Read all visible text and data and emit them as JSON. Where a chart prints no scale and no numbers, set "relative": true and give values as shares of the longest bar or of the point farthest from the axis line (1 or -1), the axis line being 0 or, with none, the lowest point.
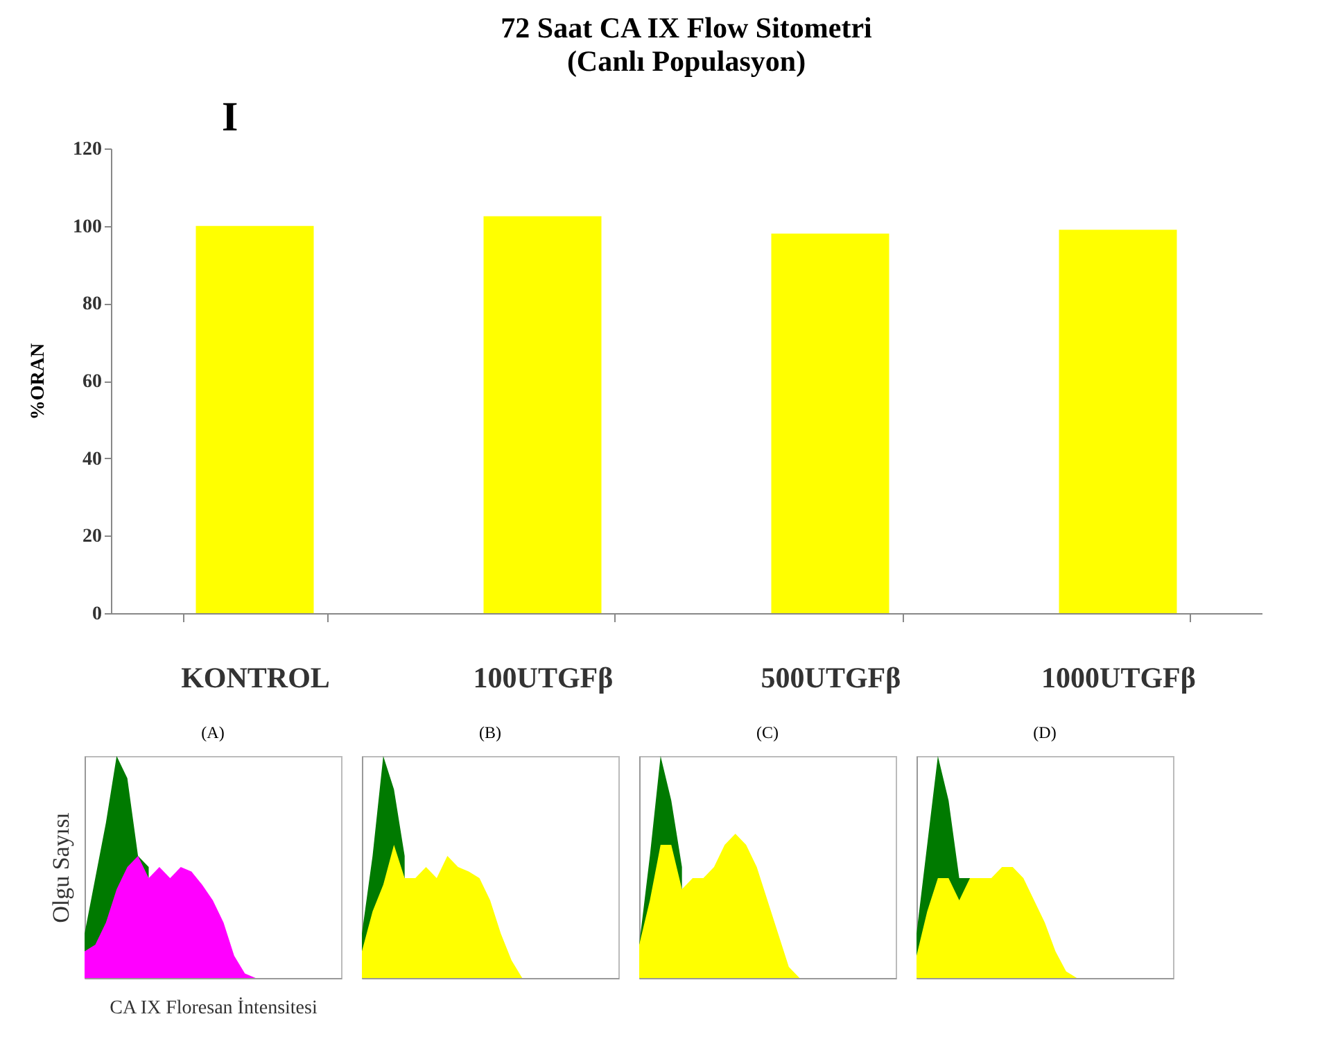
{
  "chart_data": [
    {
      "type": "bar",
      "title": "72 Saat CA IX Flow Sitometri",
      "subtitle": "(Canlı Populasyon)",
      "annotations": [
        "I"
      ],
      "ylabel": "%ORAN",
      "categories": [
        "KONTROL",
        "100UTGFβ",
        "500UTGFβ",
        "1000UTGFβ"
      ],
      "values": [
        100,
        102.5,
        98,
        99
      ],
      "color": "#ffff00",
      "ylim": [
        0,
        120
      ],
      "yticks": [
        0,
        20,
        40,
        60,
        80,
        100,
        120
      ]
    },
    {
      "type": "area",
      "title": "(A)",
      "ylabel": "Olgu Sayısı",
      "xlabel": "CA IX Floresan İntensitesi",
      "relative": true,
      "tick_labels": false,
      "categories": [
        null,
        null,
        null,
        null,
        null,
        null,
        null,
        null,
        null,
        null,
        null,
        null,
        null,
        null,
        null,
        null,
        null,
        null,
        null,
        null,
        null,
        null,
        null,
        null,
        null
      ],
      "series": [
        {
          "color": "#007a00",
          "values": [
            0.2,
            0.45,
            0.7,
            1,
            0.9,
            0.55,
            0.5,
            null,
            null,
            null,
            null,
            null,
            null,
            null,
            null,
            null,
            null,
            null,
            null,
            null,
            null,
            null,
            null,
            null,
            null
          ]
        },
        {
          "color": "#ff00ff",
          "values": [
            0.12,
            0.15,
            0.25,
            0.4,
            0.5,
            0.55,
            0.45,
            0.5,
            0.45,
            0.5,
            0.48,
            0.42,
            0.35,
            0.25,
            0.1,
            0.02,
            0,
            0,
            0,
            0,
            0,
            0,
            0,
            0,
            0
          ]
        }
      ]
    },
    {
      "type": "area",
      "title": "(B)",
      "relative": true,
      "tick_labels": false,
      "categories": [
        null,
        null,
        null,
        null,
        null,
        null,
        null,
        null,
        null,
        null,
        null,
        null,
        null,
        null,
        null,
        null,
        null,
        null,
        null,
        null,
        null,
        null,
        null,
        null,
        null
      ],
      "series": [
        {
          "color": "#007a00",
          "values": [
            0.2,
            0.55,
            1,
            0.85,
            0.55,
            null,
            null,
            null,
            null,
            null,
            null,
            null,
            null,
            null,
            null,
            null,
            null,
            null,
            null,
            null,
            null,
            null,
            null,
            null,
            null
          ]
        },
        {
          "color": "#ffff00",
          "values": [
            0.12,
            0.3,
            0.42,
            0.6,
            0.45,
            0.45,
            0.5,
            0.45,
            0.55,
            0.5,
            0.48,
            0.45,
            0.35,
            0.2,
            0.08,
            0,
            0,
            0,
            0,
            0,
            0,
            0,
            0,
            0,
            0
          ]
        }
      ]
    },
    {
      "type": "area",
      "title": "(C)",
      "relative": true,
      "tick_labels": false,
      "categories": [
        null,
        null,
        null,
        null,
        null,
        null,
        null,
        null,
        null,
        null,
        null,
        null,
        null,
        null,
        null,
        null,
        null,
        null,
        null,
        null,
        null,
        null,
        null,
        null,
        null
      ],
      "series": [
        {
          "color": "#007a00",
          "values": [
            0.15,
            0.55,
            1,
            0.8,
            0.5,
            null,
            null,
            null,
            null,
            null,
            null,
            null,
            null,
            null,
            null,
            null,
            null,
            null,
            null,
            null,
            null,
            null,
            null,
            null,
            null
          ]
        },
        {
          "color": "#ffff00",
          "values": [
            0.15,
            0.35,
            0.6,
            0.6,
            0.4,
            0.45,
            0.45,
            0.5,
            0.6,
            0.65,
            0.6,
            0.5,
            0.35,
            0.2,
            0.05,
            0,
            0,
            0,
            0,
            0,
            0,
            0,
            0,
            0,
            0
          ]
        }
      ]
    },
    {
      "type": "area",
      "title": "(D)",
      "relative": true,
      "tick_labels": false,
      "categories": [
        null,
        null,
        null,
        null,
        null,
        null,
        null,
        null,
        null,
        null,
        null,
        null,
        null,
        null,
        null,
        null,
        null,
        null,
        null,
        null,
        null,
        null,
        null,
        null,
        null
      ],
      "series": [
        {
          "color": "#007a00",
          "values": [
            0.2,
            0.6,
            1,
            0.8,
            0.45,
            0.45,
            null,
            null,
            null,
            null,
            null,
            null,
            null,
            null,
            null,
            null,
            null,
            null,
            null,
            null,
            null,
            null,
            null,
            null,
            null
          ]
        },
        {
          "color": "#ffff00",
          "values": [
            0.1,
            0.3,
            0.45,
            0.45,
            0.35,
            0.45,
            0.45,
            0.45,
            0.5,
            0.5,
            0.45,
            0.35,
            0.25,
            0.12,
            0.03,
            0,
            0,
            0,
            0,
            0,
            0,
            0,
            0,
            0,
            0
          ]
        }
      ]
    }
  ]
}
